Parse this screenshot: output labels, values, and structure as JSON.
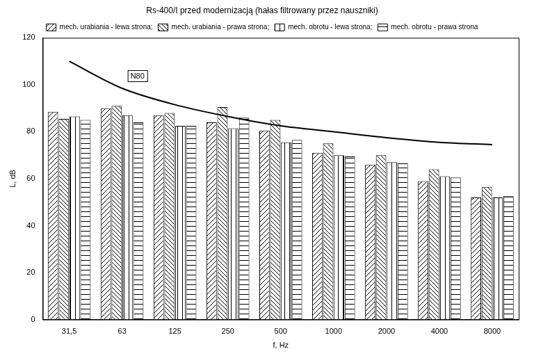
{
  "chart_data": {
    "type": "bar",
    "title": "Rs-400/I przed modernizacją (hałas filtrowany przez nauszniki)",
    "x_label": "f, Hz",
    "y_label": "L, dB",
    "categories": [
      "31,5",
      "63",
      "125",
      "250",
      "500",
      "1000",
      "2000",
      "4000",
      "8000"
    ],
    "series": [
      {
        "name": "mech. urabiania - lewa strona;",
        "color": "#000000",
        "values": [
          88.5,
          90,
          87,
          84,
          80.5,
          71,
          66,
          59,
          52
        ]
      },
      {
        "name": "mech. urabiania - prawa strona;",
        "color": "#000000",
        "values": [
          85.5,
          91,
          88,
          90.5,
          85,
          75,
          70,
          64,
          56.5
        ]
      },
      {
        "name": "mech. obrotu - lewa strona;",
        "color": "#000000",
        "values": [
          86.5,
          87,
          82.5,
          81.5,
          75.5,
          70,
          67,
          61,
          52
        ]
      },
      {
        "name": "mech. obrotu - prawa strona",
        "color": "#000000",
        "values": [
          85,
          84,
          82.5,
          86,
          76.5,
          69.5,
          66.5,
          60.5,
          52.5
        ]
      },
      {
        "name": "N80",
        "type": "line",
        "color": "#000000",
        "marker": "none",
        "line_style": "solid",
        "values": [
          110,
          98.5,
          91.5,
          86.5,
          82.5,
          80,
          77.5,
          75.5,
          74.5
        ]
      }
    ],
    "ylim": [
      0,
      120
    ],
    "yticks": [
      0,
      20,
      40,
      60,
      80,
      100,
      120
    ],
    "grid": false,
    "legend": "top"
  }
}
